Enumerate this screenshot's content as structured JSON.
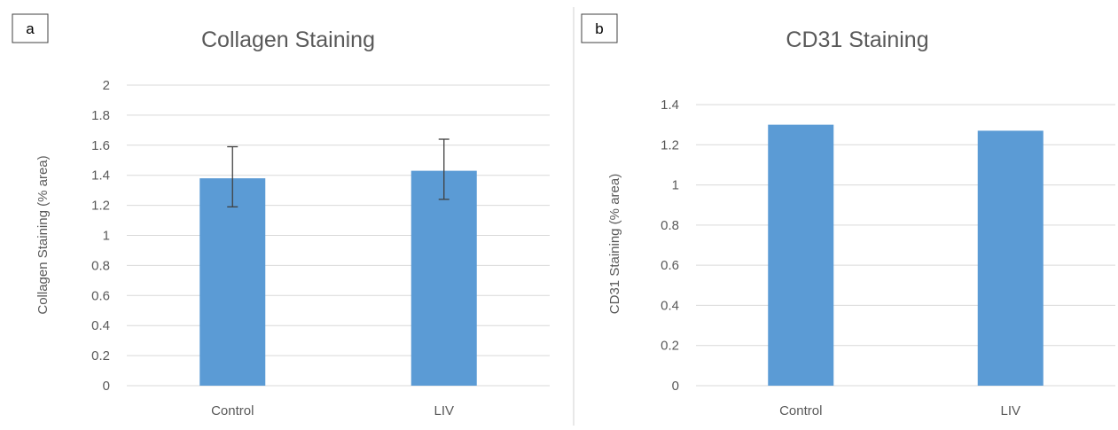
{
  "colors": {
    "bar": "#5b9bd5",
    "grid": "#d9d9d9",
    "text": "#595959",
    "divider": "#d0d0d0"
  },
  "chart_data": [
    {
      "panel_label": "a",
      "type": "bar",
      "title": "Collagen Staining",
      "xlabel": "",
      "ylabel": "Collagen Staining (% area)",
      "categories": [
        "Control",
        "LIV"
      ],
      "values": [
        1.38,
        1.43
      ],
      "error_bars": [
        {
          "low": 1.19,
          "high": 1.59
        },
        {
          "low": 1.24,
          "high": 1.64
        }
      ],
      "yticks": [
        "0",
        "0.2",
        "0.4",
        "0.6",
        "0.8",
        "1",
        "1.2",
        "1.4",
        "1.6",
        "1.8",
        "2"
      ],
      "ylim": [
        0,
        2
      ],
      "grid": true,
      "legend": "none"
    },
    {
      "panel_label": "b",
      "type": "bar",
      "title": "CD31 Staining",
      "xlabel": "",
      "ylabel": "CD31 Staining (% area)",
      "categories": [
        "Control",
        "LIV"
      ],
      "values": [
        1.3,
        1.27
      ],
      "yticks": [
        "0",
        "0.2",
        "0.4",
        "0.6",
        "0.8",
        "1",
        "1.2",
        "1.4"
      ],
      "ylim": [
        0,
        1.4
      ],
      "grid": true,
      "legend": "none"
    }
  ]
}
